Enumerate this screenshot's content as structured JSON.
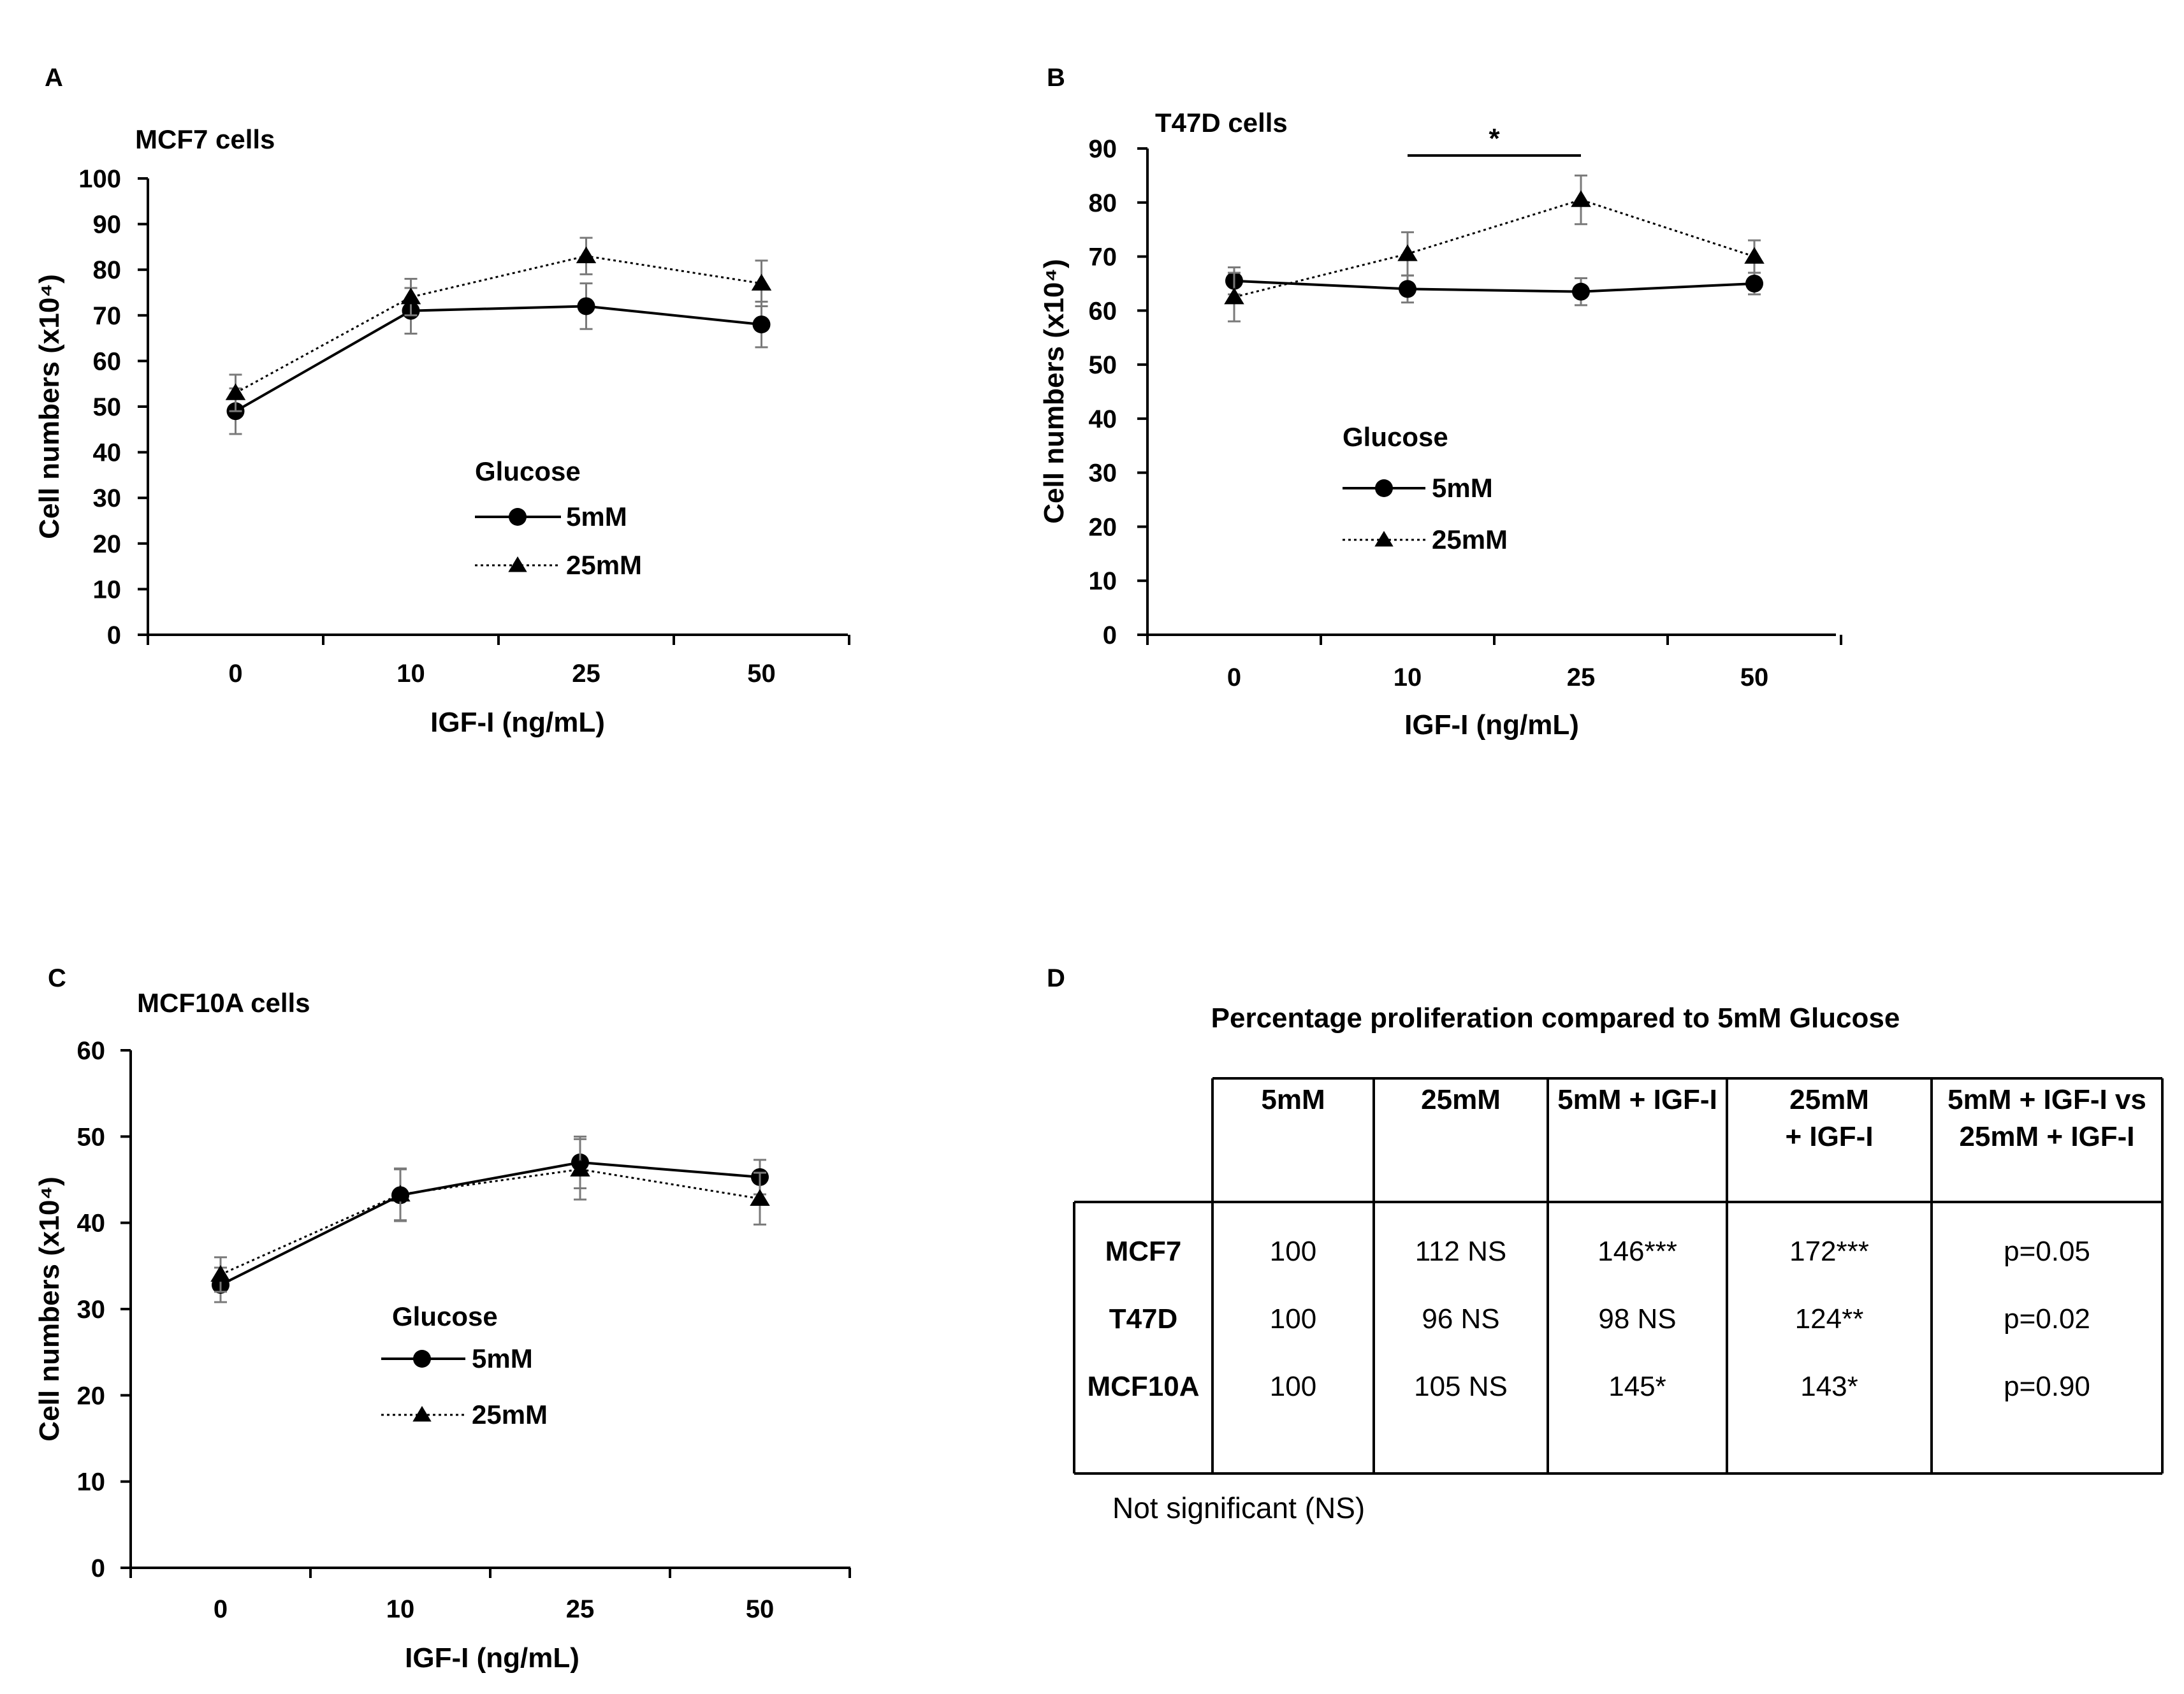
{
  "chart_data": [
    {
      "panel": "A",
      "type": "line",
      "title": "MCF7 cells",
      "xlabel": "IGF-I (ng/mL)",
      "ylabel": "Cell numbers (x10⁴)",
      "categories": [
        "0",
        "10",
        "25",
        "50"
      ],
      "ylim": [
        0,
        100
      ],
      "yticks": [
        "0",
        "10",
        "20",
        "30",
        "40",
        "50",
        "60",
        "70",
        "80",
        "90",
        "100"
      ],
      "legend_title": "Glucose",
      "series": [
        {
          "name": "5mM",
          "marker": "circle",
          "line": "solid",
          "values": [
            49,
            71,
            72,
            68
          ],
          "errors": [
            5,
            5,
            5,
            5
          ]
        },
        {
          "name": "25mM",
          "marker": "triangle",
          "line": "dotted",
          "values": [
            53,
            74,
            83,
            77
          ],
          "errors": [
            4,
            4,
            4,
            5
          ]
        }
      ]
    },
    {
      "panel": "B",
      "type": "line",
      "title": "T47D cells",
      "xlabel": "IGF-I (ng/mL)",
      "ylabel": "Cell numbers (x10⁴)",
      "categories": [
        "0",
        "10",
        "25",
        "50"
      ],
      "ylim": [
        0,
        90
      ],
      "yticks": [
        "0",
        "10",
        "20",
        "30",
        "40",
        "50",
        "60",
        "70",
        "80",
        "90"
      ],
      "legend_title": "Glucose",
      "significance": {
        "label": "*",
        "from": "10",
        "to": "25"
      },
      "series": [
        {
          "name": "5mM",
          "marker": "circle",
          "line": "solid",
          "values": [
            65.5,
            64,
            63.5,
            65
          ],
          "errors": [
            2.5,
            2.5,
            2.5,
            2
          ]
        },
        {
          "name": "25mM",
          "marker": "triangle",
          "line": "dotted",
          "values": [
            62.5,
            70.5,
            80.5,
            70
          ],
          "errors": [
            4.5,
            4,
            4.5,
            3
          ]
        }
      ]
    },
    {
      "panel": "C",
      "type": "line",
      "title": "MCF10A cells",
      "xlabel": "IGF-I (ng/mL)",
      "ylabel": "Cell numbers (x10⁴)",
      "categories": [
        "0",
        "10",
        "25",
        "50"
      ],
      "ylim": [
        0,
        60
      ],
      "yticks": [
        "0",
        "10",
        "20",
        "30",
        "40",
        "50",
        "60"
      ],
      "legend_title": "Glucose",
      "series": [
        {
          "name": "5mM",
          "marker": "circle",
          "line": "solid",
          "values": [
            32.8,
            43.2,
            47,
            45.3
          ],
          "errors": [
            2,
            3,
            3,
            2
          ]
        },
        {
          "name": "25mM",
          "marker": "triangle",
          "line": "dotted",
          "values": [
            34,
            43.3,
            46.2,
            42.8
          ],
          "errors": [
            2,
            3,
            3.5,
            3
          ]
        }
      ]
    },
    {
      "panel": "D",
      "type": "table",
      "title": "Percentage proliferation compared to 5mM Glucose",
      "columns": [
        "5mM",
        "25mM",
        "5mM + IGF-I",
        "25mM\n+ IGF-I",
        "5mM + IGF-I vs\n25mM + IGF-I"
      ],
      "rows": [
        {
          "label": "MCF7",
          "cells": [
            "100",
            "112 NS",
            "146***",
            "172***",
            "p=0.05"
          ]
        },
        {
          "label": "T47D",
          "cells": [
            "100",
            "96 NS",
            "98 NS",
            "124**",
            "p=0.02"
          ]
        },
        {
          "label": "MCF10A",
          "cells": [
            "100",
            "105 NS",
            "145*",
            "143*",
            "p=0.90"
          ]
        }
      ],
      "footnote": "Not significant (NS)"
    }
  ]
}
